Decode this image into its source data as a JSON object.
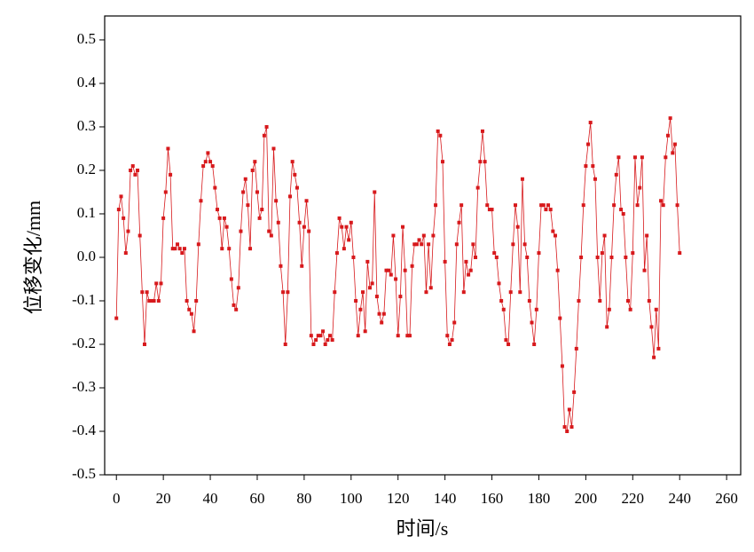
{
  "chart_data": {
    "type": "line",
    "x_label": "时间/s",
    "y_label": "位移变化/mm",
    "x": [
      0,
      1,
      2,
      3,
      4,
      5,
      6,
      7,
      8,
      9,
      10,
      11,
      12,
      13,
      14,
      15,
      16,
      17,
      18,
      19,
      20,
      21,
      22,
      23,
      24,
      25,
      26,
      27,
      28,
      29,
      30,
      31,
      32,
      33,
      34,
      35,
      36,
      37,
      38,
      39,
      40,
      41,
      42,
      43,
      44,
      45,
      46,
      47,
      48,
      49,
      50,
      51,
      52,
      53,
      54,
      55,
      56,
      57,
      58,
      59,
      60,
      61,
      62,
      63,
      64,
      65,
      66,
      67,
      68,
      69,
      70,
      71,
      72,
      73,
      74,
      75,
      76,
      77,
      78,
      79,
      80,
      81,
      82,
      83,
      84,
      85,
      86,
      87,
      88,
      89,
      90,
      91,
      92,
      93,
      94,
      95,
      96,
      97,
      98,
      99,
      100,
      101,
      102,
      103,
      104,
      105,
      106,
      107,
      108,
      109,
      110,
      111,
      112,
      113,
      114,
      115,
      116,
      117,
      118,
      119,
      120,
      121,
      122,
      123,
      124,
      125,
      126,
      127,
      128,
      129,
      130,
      131,
      132,
      133,
      134,
      135,
      136,
      137,
      138,
      139,
      140,
      141,
      142,
      143,
      144,
      145,
      146,
      147,
      148,
      149,
      150,
      151,
      152,
      153,
      154,
      155,
      156,
      157,
      158,
      159,
      160,
      161,
      162,
      163,
      164,
      165,
      166,
      167,
      168,
      169,
      170,
      171,
      172,
      173,
      174,
      175,
      176,
      177,
      178,
      179,
      180,
      181,
      182,
      183,
      184,
      185,
      186,
      187,
      188,
      189,
      190,
      191,
      192,
      193,
      194,
      195,
      196,
      197,
      198,
      199,
      200,
      201,
      202,
      203,
      204,
      205,
      206,
      207,
      208,
      209,
      210,
      211,
      212,
      213,
      214,
      215,
      216,
      217,
      218,
      219,
      220,
      221,
      222,
      223,
      224,
      225,
      226,
      227,
      228,
      229,
      230,
      231,
      232,
      233,
      234,
      235,
      236,
      237,
      238,
      239,
      240
    ],
    "series": [
      {
        "color": "#d7191c",
        "values": [
          -0.14,
          0.11,
          0.14,
          0.09,
          0.01,
          0.06,
          0.2,
          0.21,
          0.19,
          0.2,
          0.05,
          -0.08,
          -0.2,
          -0.08,
          -0.1,
          -0.1,
          -0.1,
          -0.06,
          -0.1,
          -0.06,
          0.09,
          0.15,
          0.25,
          0.19,
          0.02,
          0.02,
          0.03,
          0.02,
          0.01,
          0.02,
          -0.1,
          -0.12,
          -0.13,
          -0.17,
          -0.1,
          0.03,
          0.13,
          0.21,
          0.22,
          0.24,
          0.22,
          0.21,
          0.16,
          0.11,
          0.09,
          0.02,
          0.09,
          0.07,
          0.02,
          -0.05,
          -0.11,
          -0.12,
          -0.07,
          0.06,
          0.15,
          0.18,
          0.12,
          0.02,
          0.2,
          0.22,
          0.15,
          0.09,
          0.11,
          0.28,
          0.3,
          0.06,
          0.05,
          0.25,
          0.13,
          0.08,
          -0.02,
          -0.08,
          -0.2,
          -0.08,
          0.14,
          0.22,
          0.19,
          0.16,
          0.08,
          -0.02,
          0.07,
          0.13,
          0.06,
          -0.18,
          -0.2,
          -0.19,
          -0.18,
          -0.18,
          -0.17,
          -0.2,
          -0.19,
          -0.18,
          -0.19,
          -0.08,
          0.01,
          0.09,
          0.07,
          0.02,
          0.07,
          0.04,
          0.08,
          0.0,
          -0.1,
          -0.18,
          -0.12,
          -0.08,
          -0.17,
          -0.01,
          -0.07,
          -0.06,
          0.15,
          -0.09,
          -0.13,
          -0.15,
          -0.13,
          -0.03,
          -0.03,
          -0.04,
          0.05,
          -0.05,
          -0.18,
          -0.09,
          0.07,
          -0.03,
          -0.18,
          -0.18,
          -0.02,
          0.03,
          0.03,
          0.04,
          0.03,
          0.05,
          -0.08,
          0.03,
          -0.07,
          0.05,
          0.12,
          0.29,
          0.28,
          0.22,
          -0.01,
          -0.18,
          -0.2,
          -0.19,
          -0.15,
          0.03,
          0.08,
          0.12,
          -0.08,
          -0.01,
          -0.04,
          -0.03,
          0.03,
          0.0,
          0.16,
          0.22,
          0.29,
          0.22,
          0.12,
          0.11,
          0.11,
          0.01,
          0.0,
          -0.06,
          -0.1,
          -0.12,
          -0.19,
          -0.2,
          -0.08,
          0.03,
          0.12,
          0.07,
          -0.08,
          0.18,
          0.03,
          0.0,
          -0.1,
          -0.15,
          -0.2,
          -0.12,
          0.01,
          0.12,
          0.12,
          0.11,
          0.12,
          0.11,
          0.06,
          0.05,
          -0.03,
          -0.14,
          -0.25,
          -0.39,
          -0.4,
          -0.35,
          -0.39,
          -0.31,
          -0.21,
          -0.1,
          0.0,
          0.12,
          0.21,
          0.26,
          0.31,
          0.21,
          0.18,
          0.0,
          -0.1,
          0.01,
          0.05,
          -0.16,
          -0.12,
          0.0,
          0.12,
          0.19,
          0.23,
          0.11,
          0.1,
          0.0,
          -0.1,
          -0.12,
          0.01,
          0.23,
          0.12,
          0.16,
          0.23,
          -0.03,
          0.05,
          -0.1,
          -0.16,
          -0.23,
          -0.12,
          -0.21,
          0.13,
          0.12,
          0.23,
          0.28,
          0.32,
          0.24,
          0.26,
          0.12,
          0.01
        ]
      }
    ],
    "xlim": [
      -5,
      266
    ],
    "xticks": [
      0,
      20,
      40,
      60,
      80,
      100,
      120,
      140,
      160,
      180,
      200,
      220,
      240,
      260
    ],
    "ylim": [
      -0.5,
      0.555
    ],
    "yticks": [
      -0.5,
      -0.4,
      -0.3,
      -0.2,
      -0.1,
      {
        "value": 0,
        "label": "0.0"
      },
      0.1,
      0.2,
      0.3,
      0.4,
      0.5
    ]
  }
}
